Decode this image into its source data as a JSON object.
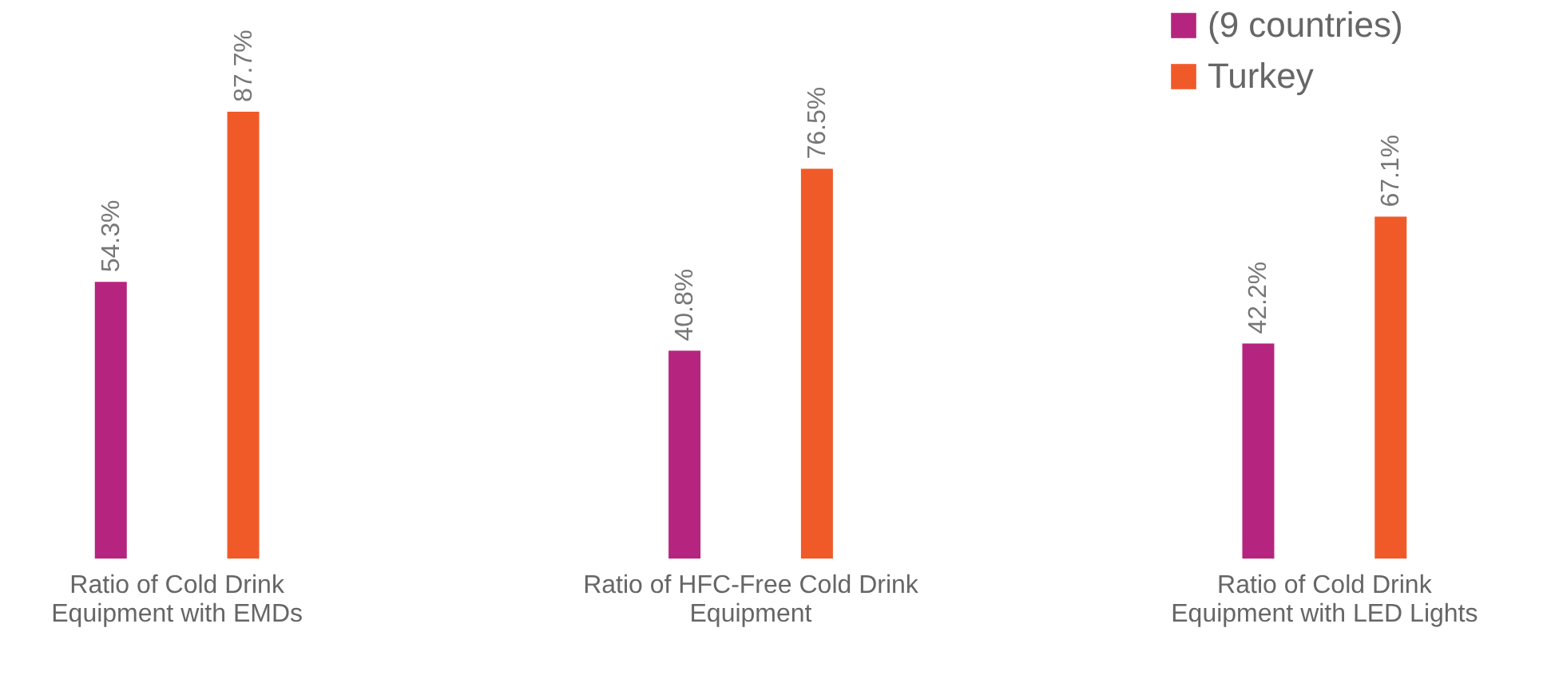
{
  "chart_data": {
    "type": "bar",
    "categories": [
      "Ratio of Cold Drink Equipment with EMDs",
      "Ratio of HFC-Free Cold Drink Equipment",
      "Ratio of Cold Drink Equipment with LED Lights"
    ],
    "series": [
      {
        "name": "(9 countries)",
        "color": "#b5257f",
        "values": [
          54.3,
          40.8,
          42.2
        ],
        "value_labels": [
          "54.3%",
          "40.8%",
          "42.2%"
        ]
      },
      {
        "name": "Turkey",
        "color": "#f05a28",
        "values": [
          87.7,
          76.5,
          67.1
        ],
        "value_labels": [
          "87.7%",
          "76.5%",
          "67.1%"
        ]
      }
    ],
    "legend": "top right",
    "grid": false
  }
}
